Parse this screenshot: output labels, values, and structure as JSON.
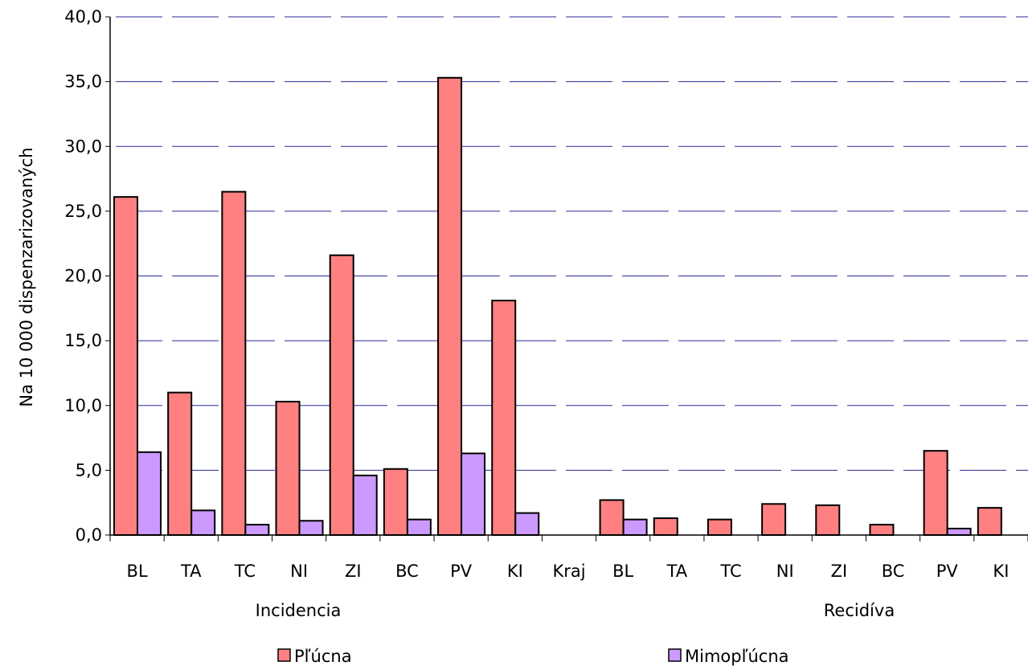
{
  "chart_data": {
    "type": "bar",
    "ylabel": "Na 10 000 dispenzarizovaných",
    "ylim": [
      0,
      40
    ],
    "yticks": [
      "0,0",
      "5,0",
      "10,0",
      "15,0",
      "20,0",
      "25,0",
      "30,0",
      "35,0",
      "40,0"
    ],
    "grid": "horizontal dashed",
    "legend_position": "bottom",
    "categories": [
      "BL",
      "TA",
      "TC",
      "NI",
      "ZI",
      "BC",
      "PV",
      "KI",
      "Kraj",
      "BL",
      "TA",
      "TC",
      "NI",
      "ZI",
      "BC",
      "PV",
      "KI"
    ],
    "groups": [
      {
        "label": "Incidencia"
      },
      {
        "label": "Recidíva"
      }
    ],
    "series": [
      {
        "name": "Pľúcna",
        "color": "#ff8080",
        "values": [
          26.1,
          11.0,
          26.5,
          10.3,
          21.6,
          5.1,
          35.3,
          18.1,
          0,
          2.7,
          1.3,
          1.2,
          2.4,
          2.3,
          0.8,
          6.5,
          2.1
        ]
      },
      {
        "name": "Mimopľúcna",
        "color": "#cc99ff",
        "values": [
          6.4,
          1.9,
          0.8,
          1.1,
          4.6,
          1.2,
          6.3,
          1.7,
          0,
          1.2,
          0,
          0,
          0,
          0,
          0,
          0.5,
          0
        ]
      }
    ]
  }
}
